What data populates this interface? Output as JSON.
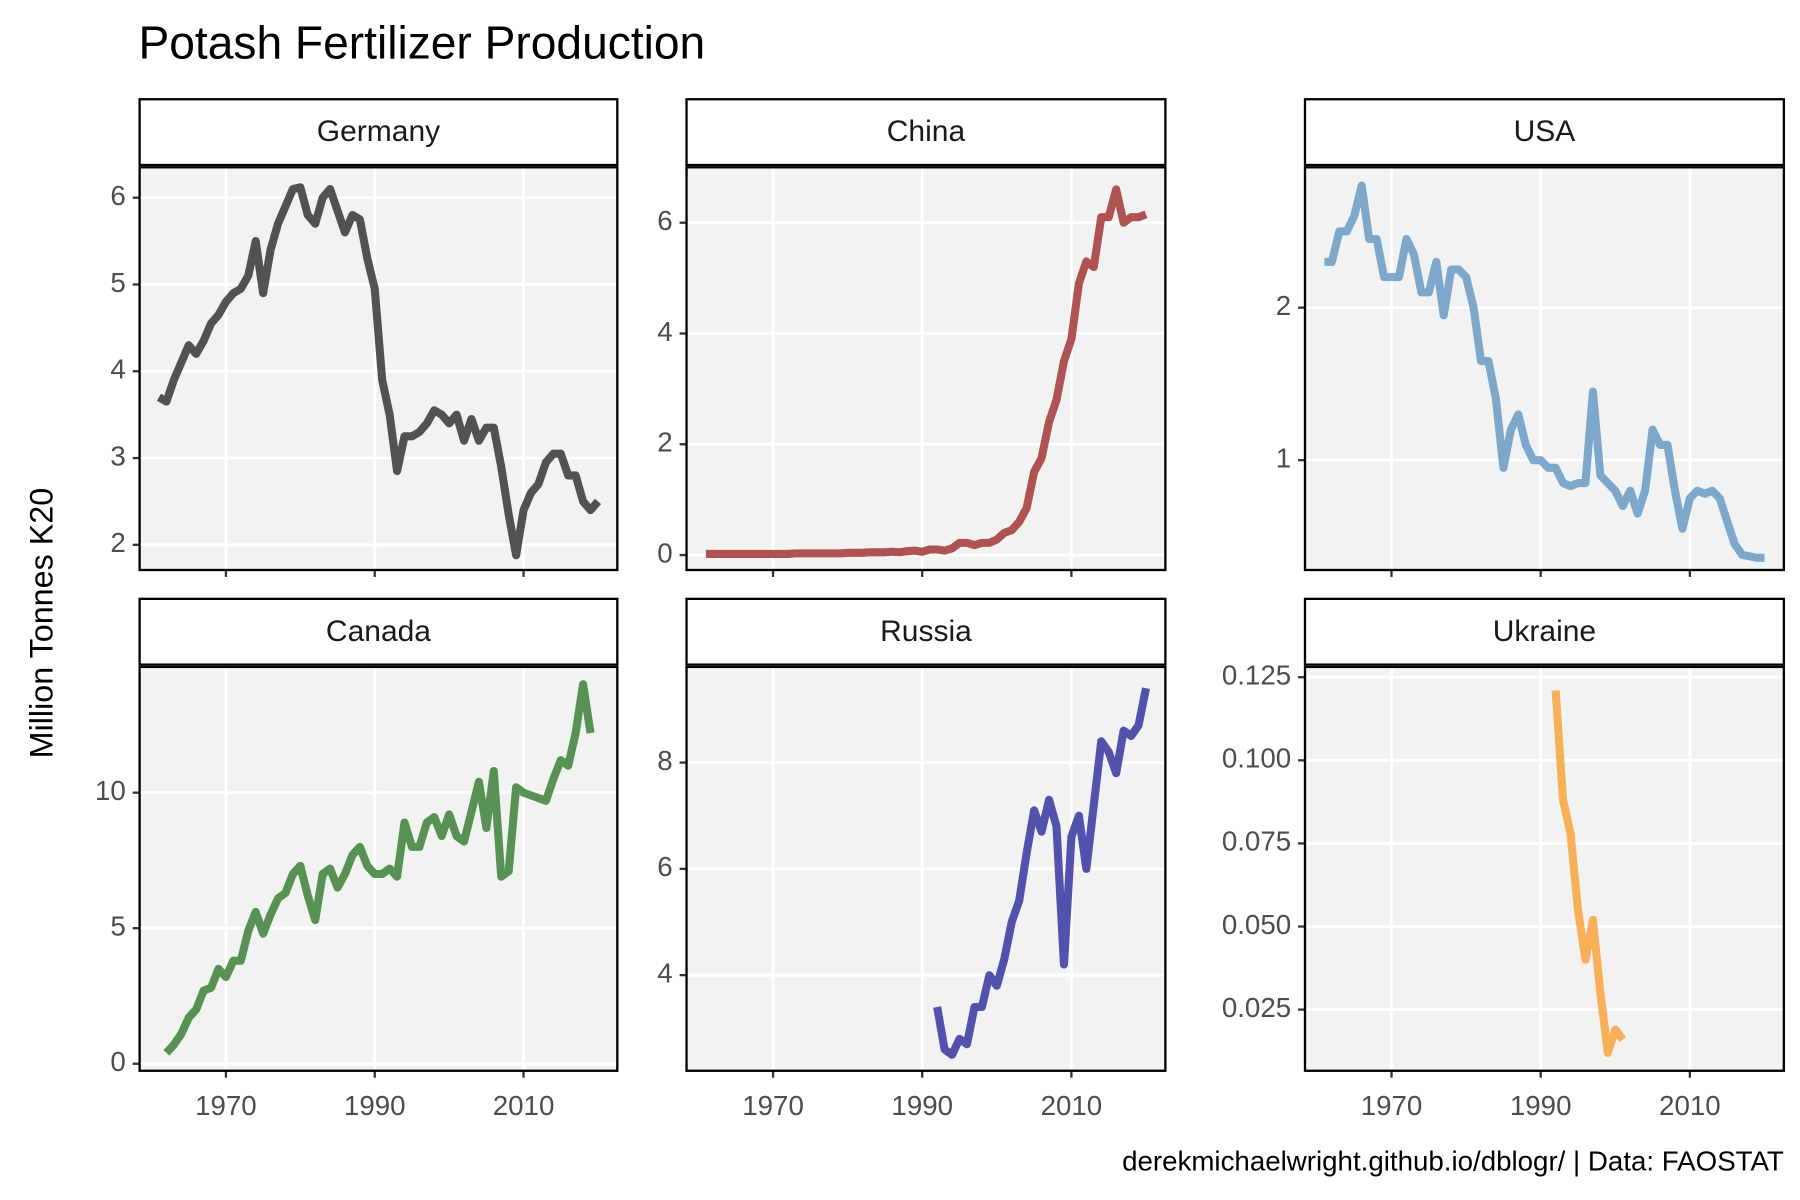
{
  "title": "Potash Fertilizer Production",
  "y_label": "Million Tonnes K20",
  "caption": "derekmichaelwright.github.io/dblogr/ | Data: FAOSTAT",
  "chart_data": [
    {
      "type": "line",
      "title": "Germany",
      "color": "#444444",
      "x": [
        1961,
        1962,
        1963,
        1964,
        1965,
        1966,
        1967,
        1968,
        1969,
        1970,
        1971,
        1972,
        1973,
        1974,
        1975,
        1976,
        1977,
        1978,
        1979,
        1980,
        1981,
        1982,
        1983,
        1984,
        1985,
        1986,
        1987,
        1988,
        1989,
        1990,
        1991,
        1992,
        1993,
        1994,
        1995,
        1996,
        1997,
        1998,
        1999,
        2000,
        2001,
        2002,
        2003,
        2004,
        2005,
        2006,
        2007,
        2008,
        2009,
        2010,
        2011,
        2012,
        2013,
        2014,
        2015,
        2016,
        2017,
        2018,
        2019,
        2020
      ],
      "values": [
        3.7,
        3.65,
        3.9,
        4.1,
        4.3,
        4.2,
        4.35,
        4.55,
        4.65,
        4.8,
        4.9,
        4.95,
        5.1,
        5.5,
        4.9,
        5.4,
        5.7,
        5.9,
        6.1,
        6.12,
        5.8,
        5.7,
        6.0,
        6.1,
        5.85,
        5.6,
        5.8,
        5.75,
        5.3,
        4.95,
        3.9,
        3.5,
        2.85,
        3.25,
        3.25,
        3.3,
        3.4,
        3.55,
        3.5,
        3.4,
        3.5,
        3.2,
        3.45,
        3.2,
        3.35,
        3.35,
        2.9,
        2.35,
        1.88,
        2.4,
        2.6,
        2.7,
        2.95,
        3.05,
        3.05,
        2.8,
        2.8,
        2.5,
        2.4,
        2.5
      ],
      "xlim": [
        1958.4,
        2022.6
      ],
      "xticks": [
        1970,
        1990,
        2010
      ],
      "ylim": [
        1.71,
        6.35
      ],
      "yticks": [
        2,
        3,
        4,
        5,
        6
      ],
      "grid": true
    },
    {
      "type": "line",
      "title": "China",
      "color": "#a84444",
      "x": [
        1961,
        1962,
        1963,
        1964,
        1965,
        1966,
        1967,
        1968,
        1969,
        1970,
        1971,
        1972,
        1973,
        1974,
        1975,
        1976,
        1977,
        1978,
        1979,
        1980,
        1981,
        1982,
        1983,
        1984,
        1985,
        1986,
        1987,
        1988,
        1989,
        1990,
        1991,
        1992,
        1993,
        1994,
        1995,
        1996,
        1997,
        1998,
        1999,
        2000,
        2001,
        2002,
        2003,
        2004,
        2005,
        2006,
        2007,
        2008,
        2009,
        2010,
        2011,
        2012,
        2013,
        2014,
        2015,
        2016,
        2017,
        2018,
        2019,
        2020
      ],
      "values": [
        0.02,
        0.02,
        0.02,
        0.02,
        0.02,
        0.02,
        0.02,
        0.02,
        0.02,
        0.02,
        0.02,
        0.02,
        0.03,
        0.03,
        0.03,
        0.03,
        0.03,
        0.03,
        0.03,
        0.04,
        0.04,
        0.04,
        0.05,
        0.05,
        0.05,
        0.06,
        0.05,
        0.07,
        0.08,
        0.06,
        0.1,
        0.1,
        0.08,
        0.12,
        0.22,
        0.22,
        0.18,
        0.22,
        0.22,
        0.28,
        0.4,
        0.45,
        0.6,
        0.85,
        1.5,
        1.75,
        2.4,
        2.8,
        3.5,
        3.9,
        4.9,
        5.3,
        5.2,
        6.1,
        6.1,
        6.6,
        6.0,
        6.1,
        6.1,
        6.15
      ],
      "xlim": [
        1958.4,
        2022.6
      ],
      "xticks": [
        1970,
        1990,
        2010
      ],
      "ylim": [
        -0.27,
        7.0
      ],
      "yticks": [
        0,
        2,
        4,
        6
      ],
      "grid": true
    },
    {
      "type": "line",
      "title": "USA",
      "color": "#74a2c8",
      "x": [
        1961,
        1962,
        1963,
        1964,
        1965,
        1966,
        1967,
        1968,
        1969,
        1970,
        1971,
        1972,
        1973,
        1974,
        1975,
        1976,
        1977,
        1978,
        1979,
        1980,
        1981,
        1982,
        1983,
        1984,
        1985,
        1986,
        1987,
        1988,
        1989,
        1990,
        1991,
        1992,
        1993,
        1994,
        1995,
        1996,
        1997,
        1998,
        1999,
        2000,
        2001,
        2002,
        2003,
        2004,
        2005,
        2006,
        2007,
        2008,
        2009,
        2010,
        2011,
        2012,
        2013,
        2014,
        2015,
        2016,
        2017,
        2018,
        2019,
        2020
      ],
      "values": [
        2.3,
        2.3,
        2.5,
        2.5,
        2.6,
        2.8,
        2.45,
        2.45,
        2.2,
        2.2,
        2.2,
        2.45,
        2.35,
        2.1,
        2.1,
        2.3,
        1.95,
        2.25,
        2.25,
        2.2,
        2.0,
        1.65,
        1.65,
        1.4,
        0.95,
        1.2,
        1.3,
        1.1,
        1.0,
        1.0,
        0.95,
        0.95,
        0.85,
        0.83,
        0.85,
        0.85,
        1.45,
        0.9,
        0.85,
        0.8,
        0.7,
        0.8,
        0.65,
        0.8,
        1.2,
        1.1,
        1.1,
        0.8,
        0.55,
        0.75,
        0.8,
        0.78,
        0.8,
        0.75,
        0.6,
        0.45,
        0.38,
        0.37,
        0.36,
        0.36
      ],
      "xlim": [
        1958.4,
        2022.6
      ],
      "xticks": [
        1970,
        1990,
        2010
      ],
      "ylim": [
        0.28,
        2.92
      ],
      "yticks": [
        1,
        2
      ],
      "grid": true
    },
    {
      "type": "line",
      "title": "Canada",
      "color": "#4a8a47",
      "x": [
        1962,
        1963,
        1964,
        1965,
        1966,
        1967,
        1968,
        1969,
        1970,
        1971,
        1972,
        1973,
        1974,
        1975,
        1976,
        1977,
        1978,
        1979,
        1980,
        1981,
        1982,
        1983,
        1984,
        1985,
        1986,
        1987,
        1988,
        1989,
        1990,
        1991,
        1992,
        1993,
        1994,
        1995,
        1996,
        1997,
        1998,
        1999,
        2000,
        2001,
        2002,
        2003,
        2004,
        2005,
        2006,
        2007,
        2008,
        2009,
        2010,
        2011,
        2012,
        2013,
        2014,
        2015,
        2016,
        2017,
        2018,
        2019
      ],
      "values": [
        0.4,
        0.7,
        1.1,
        1.7,
        2.0,
        2.7,
        2.8,
        3.5,
        3.2,
        3.8,
        3.8,
        4.9,
        5.6,
        4.8,
        5.5,
        6.1,
        6.3,
        7.0,
        7.3,
        6.2,
        5.3,
        7.0,
        7.2,
        6.5,
        7.0,
        7.7,
        8.0,
        7.3,
        7.0,
        7.0,
        7.2,
        6.9,
        8.9,
        8.0,
        8.0,
        8.9,
        9.1,
        8.4,
        9.2,
        8.4,
        8.2,
        9.3,
        10.4,
        8.7,
        10.8,
        6.9,
        7.1,
        10.2,
        10.0,
        9.9,
        9.8,
        9.7,
        10.5,
        11.2,
        11.0,
        12.2,
        14.0,
        12.2
      ],
      "xlim": [
        1958.4,
        2022.6
      ],
      "xticks": [
        1970,
        1990,
        2010
      ],
      "ylim": [
        -0.26,
        14.64
      ],
      "yticks": [
        0,
        5,
        10
      ],
      "grid": true
    },
    {
      "type": "line",
      "title": "Russia",
      "color": "#4444a6",
      "x": [
        1992,
        1993,
        1994,
        1995,
        1996,
        1997,
        1998,
        1999,
        2000,
        2001,
        2002,
        2003,
        2004,
        2005,
        2006,
        2007,
        2008,
        2009,
        2010,
        2011,
        2012,
        2013,
        2014,
        2015,
        2016,
        2017,
        2018,
        2019,
        2020
      ],
      "values": [
        3.4,
        2.6,
        2.5,
        2.8,
        2.7,
        3.4,
        3.4,
        4.0,
        3.8,
        4.3,
        5.0,
        5.4,
        6.3,
        7.1,
        6.7,
        7.3,
        6.8,
        4.2,
        6.6,
        7.0,
        6.0,
        7.2,
        8.4,
        8.2,
        7.8,
        8.6,
        8.5,
        8.7,
        9.4
      ],
      "xlim": [
        1958.4,
        2022.6
      ],
      "xticks": [
        1970,
        1990,
        2010
      ],
      "ylim": [
        2.2,
        9.8
      ],
      "yticks": [
        4,
        6,
        8
      ],
      "grid": true
    },
    {
      "type": "line",
      "title": "Ukraine",
      "color": "#f9a94a",
      "x": [
        1992,
        1993,
        1994,
        1995,
        1996,
        1997,
        1998,
        1999,
        2000,
        2001
      ],
      "values": [
        0.121,
        0.088,
        0.078,
        0.055,
        0.04,
        0.052,
        0.03,
        0.012,
        0.019,
        0.016
      ],
      "xlim": [
        1958.4,
        2022.6
      ],
      "xticks": [
        1970,
        1990,
        2010
      ],
      "ylim": [
        0.0066,
        0.1281
      ],
      "yticks": [
        {
          "value": 0.025,
          "label": "0.025"
        },
        {
          "value": 0.05,
          "label": "0.050"
        },
        {
          "value": 0.075,
          "label": "0.075"
        },
        {
          "value": 0.1,
          "label": "0.100"
        },
        {
          "value": 0.125,
          "label": "0.125"
        }
      ],
      "grid": true
    }
  ]
}
